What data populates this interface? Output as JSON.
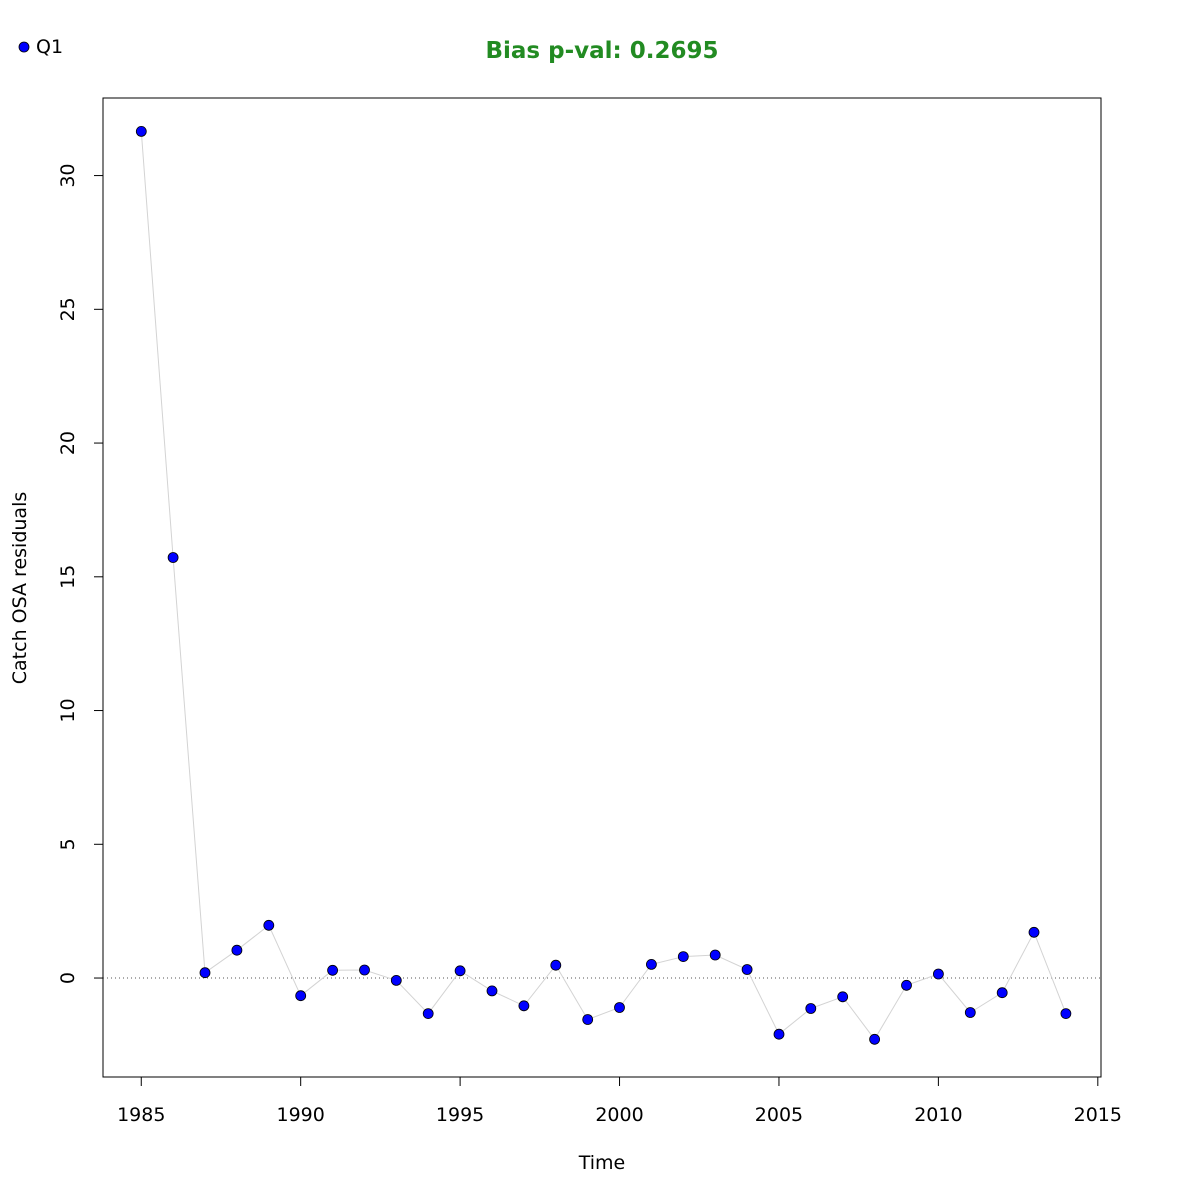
{
  "chart_data": {
    "type": "scatter",
    "title": "Bias p-val: 0.2695",
    "title_color": "#228B22",
    "xlabel": "Time",
    "ylabel": "Catch OSA residuals",
    "xlim": [
      1983.8,
      2015.1
    ],
    "ylim": [
      -3.7,
      32.9
    ],
    "x_ticks": [
      1985,
      1990,
      1995,
      2000,
      2005,
      2010,
      2015
    ],
    "x_tick_labels": [
      "1985",
      "1990",
      "1995",
      "2000",
      "2005",
      "2010",
      "2015"
    ],
    "y_ticks": [
      0,
      5,
      10,
      15,
      20,
      25,
      30
    ],
    "y_tick_labels": [
      "0",
      "5",
      "10",
      "15",
      "20",
      "25",
      "30"
    ],
    "reference_line": 0,
    "grid": false,
    "legend_position": "top-left",
    "point_color": "#0000FF",
    "line_color": "#D3D3D3",
    "series": [
      {
        "name": "Q1",
        "x": [
          1985,
          1986,
          1987,
          1988,
          1989,
          1990,
          1991,
          1992,
          1993,
          1994,
          1995,
          1996,
          1997,
          1998,
          1999,
          2000,
          2001,
          2002,
          2003,
          2004,
          2005,
          2006,
          2007,
          2008,
          2009,
          2010,
          2011,
          2012,
          2013,
          2014
        ],
        "y": [
          31.65,
          15.72,
          0.2,
          1.04,
          1.97,
          -0.66,
          0.29,
          0.3,
          -0.09,
          -1.33,
          0.27,
          -0.48,
          -1.04,
          0.48,
          -1.55,
          -1.1,
          0.51,
          0.8,
          0.86,
          0.32,
          -2.1,
          -1.14,
          -0.7,
          -2.29,
          -0.27,
          0.15,
          -1.29,
          -0.55,
          1.71,
          -1.33
        ]
      }
    ]
  }
}
